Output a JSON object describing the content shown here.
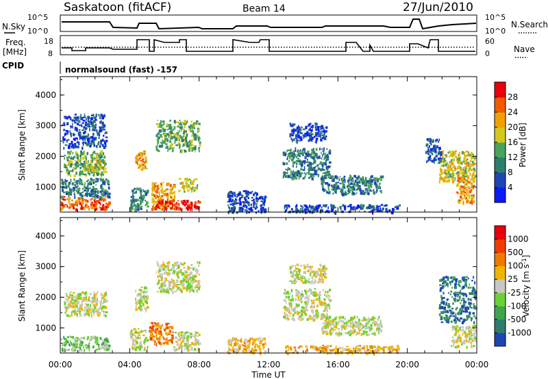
{
  "header": {
    "station": "Saskatoon (fitACF)",
    "beam": "Beam 14",
    "date": "27/Jun/2010"
  },
  "strips": {
    "nsky_label": "N.Sky",
    "nsearch_label": "N.Search",
    "freq_label_1": "Freq.",
    "freq_label_2": "[MHz]",
    "nave_label": "Nave",
    "cpid_label": "CPID",
    "cpid_value": "normalsound (fast) -157",
    "nsky_ticks": [
      "10^5",
      "10^0"
    ],
    "nsearch_ticks": [
      "10^5",
      "10^0"
    ],
    "freq_ticks": [
      "18",
      "8"
    ],
    "nave_ticks": [
      "60",
      "0"
    ]
  },
  "axes": {
    "ylabel": "Slant Range [km]",
    "xlabel": "Time UT",
    "y_ticks": [
      "1000",
      "2000",
      "3000",
      "4000"
    ],
    "x_ticks": [
      "00:00",
      "04:00",
      "08:00",
      "12:00",
      "16:00",
      "20:00",
      "00:00"
    ]
  },
  "chart_data": [
    {
      "type": "heatmap",
      "name": "power",
      "colorbar_label": "Power [dB]",
      "colorbar_ticks": [
        "4",
        "8",
        "12",
        "16",
        "20",
        "24",
        "28"
      ],
      "colors": [
        "#0a1aff",
        "#1c46b4",
        "#2e7c6e",
        "#4aa35a",
        "#d4c81c",
        "#f0a000",
        "#f05a00",
        "#e8000a"
      ],
      "xlim": [
        0,
        24
      ],
      "ylim": [
        180,
        4600
      ],
      "regions": [
        {
          "t": [
            0.0,
            2.8
          ],
          "r": [
            300,
            700
          ],
          "level": 6
        },
        {
          "t": [
            0.0,
            2.8
          ],
          "r": [
            700,
            1300
          ],
          "level": 2
        },
        {
          "t": [
            0.2,
            2.5
          ],
          "r": [
            1400,
            2200
          ],
          "level": 3
        },
        {
          "t": [
            1.4,
            2.6
          ],
          "r": [
            1500,
            1900
          ],
          "level": 4
        },
        {
          "t": [
            0.1,
            2.6
          ],
          "r": [
            2300,
            3400
          ],
          "level": 1
        },
        {
          "t": [
            4.0,
            5.0
          ],
          "r": [
            300,
            1000
          ],
          "level": 2
        },
        {
          "t": [
            4.3,
            5.0
          ],
          "r": [
            1600,
            2200
          ],
          "level": 5
        },
        {
          "t": [
            5.2,
            6.6
          ],
          "r": [
            300,
            1200
          ],
          "level": 5
        },
        {
          "t": [
            5.4,
            8.0
          ],
          "r": [
            300,
            600
          ],
          "level": 7
        },
        {
          "t": [
            6.8,
            7.9
          ],
          "r": [
            900,
            1300
          ],
          "level": 4
        },
        {
          "t": [
            5.5,
            8.0
          ],
          "r": [
            2200,
            3200
          ],
          "level": 3
        },
        {
          "t": [
            9.6,
            11.8
          ],
          "r": [
            200,
            900
          ],
          "level": 1
        },
        {
          "t": [
            12.8,
            15.5
          ],
          "r": [
            1300,
            2300
          ],
          "level": 2
        },
        {
          "t": [
            15.0,
            18.5
          ],
          "r": [
            800,
            1400
          ],
          "level": 2
        },
        {
          "t": [
            12.8,
            19.5
          ],
          "r": [
            200,
            450
          ],
          "level": 1
        },
        {
          "t": [
            13.2,
            15.3
          ],
          "r": [
            2500,
            3100
          ],
          "level": 1
        },
        {
          "t": [
            21.8,
            23.9
          ],
          "r": [
            1200,
            2200
          ],
          "level": 4
        },
        {
          "t": [
            22.8,
            23.8
          ],
          "r": [
            500,
            1500
          ],
          "level": 5
        },
        {
          "t": [
            21.0,
            21.9
          ],
          "r": [
            1800,
            2600
          ],
          "level": 1
        }
      ]
    },
    {
      "type": "heatmap",
      "name": "velocity",
      "colorbar_label": "Velocity [m s^-1]",
      "colorbar_ticks": [
        "1000",
        "500",
        "100",
        "25",
        "-25",
        "-100",
        "-500",
        "-1000"
      ],
      "colors": [
        "#1c46b4",
        "#2e7c6e",
        "#3fa34f",
        "#6cd136",
        "#c8c8c0",
        "#f0b400",
        "#f07a00",
        "#f03c00",
        "#e8000a"
      ],
      "xlim": [
        0,
        24
      ],
      "ylim": [
        180,
        4600
      ],
      "regions": [
        {
          "t": [
            0.0,
            2.8
          ],
          "r": [
            300,
            750
          ],
          "level": 3
        },
        {
          "t": [
            0.2,
            2.6
          ],
          "r": [
            1400,
            2200
          ],
          "level": 4
        },
        {
          "t": [
            4.0,
            5.0
          ],
          "r": [
            300,
            1000
          ],
          "level": 4
        },
        {
          "t": [
            4.3,
            5.0
          ],
          "r": [
            1600,
            2400
          ],
          "level": 4
        },
        {
          "t": [
            5.1,
            6.5
          ],
          "r": [
            500,
            1200
          ],
          "level": 6
        },
        {
          "t": [
            6.5,
            8.0
          ],
          "r": [
            300,
            900
          ],
          "level": 4
        },
        {
          "t": [
            5.5,
            8.0
          ],
          "r": [
            2200,
            3200
          ],
          "level": 4
        },
        {
          "t": [
            9.6,
            11.8
          ],
          "r": [
            200,
            700
          ],
          "level": 5
        },
        {
          "t": [
            12.8,
            15.5
          ],
          "r": [
            1300,
            2300
          ],
          "level": 4
        },
        {
          "t": [
            15.0,
            18.5
          ],
          "r": [
            800,
            1400
          ],
          "level": 4
        },
        {
          "t": [
            12.8,
            19.5
          ],
          "r": [
            200,
            450
          ],
          "level": 5
        },
        {
          "t": [
            21.8,
            23.9
          ],
          "r": [
            1200,
            2700
          ],
          "level": 1
        },
        {
          "t": [
            22.5,
            23.9
          ],
          "r": [
            400,
            1100
          ],
          "level": 4
        },
        {
          "t": [
            13.2,
            15.3
          ],
          "r": [
            2500,
            3100
          ],
          "level": 4
        }
      ]
    }
  ]
}
